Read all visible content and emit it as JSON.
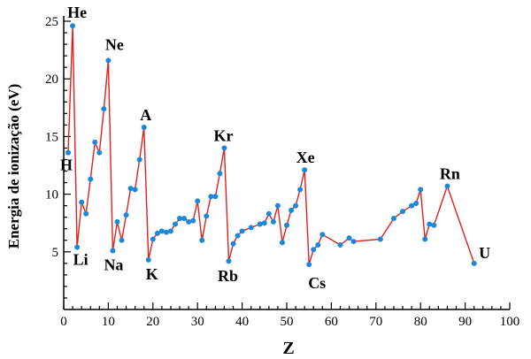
{
  "chart_data": {
    "type": "line",
    "title": "",
    "xlabel": "Z",
    "ylabel": "Energia de ionização (eV)",
    "xlim": [
      0,
      100
    ],
    "ylim": [
      0,
      25
    ],
    "x_ticks": [
      "0",
      "10",
      "20",
      "30",
      "40",
      "50",
      "60",
      "70",
      "80",
      "90",
      "100"
    ],
    "y_ticks": [
      "5",
      "10",
      "15",
      "20",
      "25"
    ],
    "grid": false,
    "colors": {
      "line": "#e0201c",
      "marker": "#1e88d8",
      "axis": "#000000"
    },
    "series": [
      {
        "x": [
          1,
          2,
          3,
          4,
          5,
          6,
          7,
          8,
          9,
          10,
          11,
          12,
          13,
          14,
          15,
          16,
          17,
          18,
          19,
          20,
          21,
          22,
          23,
          24,
          25,
          26,
          27,
          28,
          29,
          30,
          31,
          32,
          33,
          34,
          35,
          36,
          37,
          38,
          39,
          40,
          42,
          44,
          45,
          46,
          47,
          48,
          49,
          50,
          51,
          52,
          53,
          54,
          55,
          56,
          57,
          58,
          62,
          64,
          65,
          71,
          74,
          76,
          78,
          79,
          80,
          81,
          82,
          83,
          86,
          92
        ],
        "y": [
          13.6,
          24.6,
          5.4,
          9.3,
          8.3,
          11.3,
          14.5,
          13.6,
          17.4,
          21.6,
          5.1,
          7.6,
          6.0,
          8.2,
          10.5,
          10.4,
          13.0,
          15.8,
          4.3,
          6.1,
          6.6,
          6.8,
          6.7,
          6.8,
          7.4,
          7.9,
          7.9,
          7.6,
          7.7,
          9.4,
          6.0,
          8.1,
          9.8,
          9.8,
          11.8,
          14.0,
          4.2,
          5.7,
          6.4,
          6.8,
          7.1,
          7.4,
          7.5,
          8.3,
          7.6,
          9.0,
          5.8,
          7.3,
          8.6,
          9.0,
          10.4,
          12.1,
          3.9,
          5.2,
          5.6,
          6.5,
          5.6,
          6.2,
          5.9,
          6.1,
          7.9,
          8.5,
          9.0,
          9.2,
          10.4,
          6.1,
          7.4,
          7.3,
          10.7,
          4.0
        ]
      }
    ],
    "annotations": [
      {
        "text": "He",
        "x": 2,
        "y": 24.6
      },
      {
        "text": "H",
        "x": 1,
        "y": 13.6
      },
      {
        "text": "Li",
        "x": 3,
        "y": 5.4
      },
      {
        "text": "Ne",
        "x": 10,
        "y": 21.6
      },
      {
        "text": "Na",
        "x": 11,
        "y": 5.1
      },
      {
        "text": "A",
        "x": 18,
        "y": 15.8
      },
      {
        "text": "K",
        "x": 19,
        "y": 4.3
      },
      {
        "text": "Kr",
        "x": 36,
        "y": 14.0
      },
      {
        "text": "Rb",
        "x": 37,
        "y": 4.2
      },
      {
        "text": "Xe",
        "x": 54,
        "y": 12.1
      },
      {
        "text": "Cs",
        "x": 55,
        "y": 3.9
      },
      {
        "text": "Rn",
        "x": 86,
        "y": 10.7
      },
      {
        "text": "U",
        "x": 92,
        "y": 4.0
      }
    ]
  }
}
